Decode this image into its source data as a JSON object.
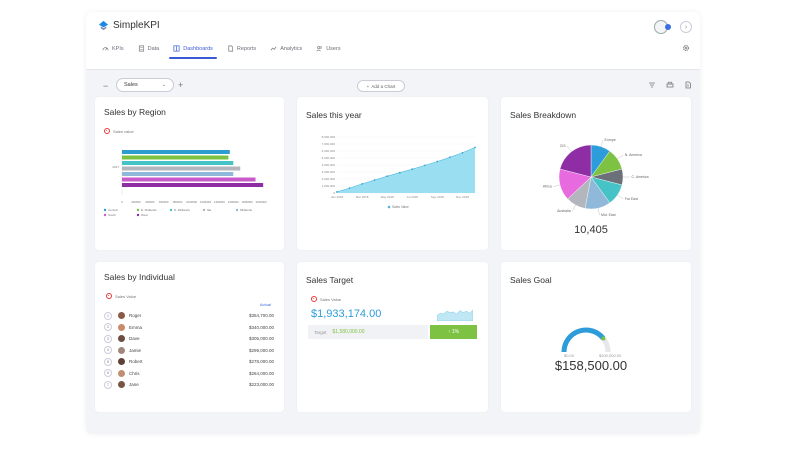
{
  "app": {
    "name": "SimpleKPI"
  },
  "nav": {
    "items": [
      {
        "label": "KPIs",
        "icon": "gauge-icon",
        "active": false
      },
      {
        "label": "Data",
        "icon": "data-icon",
        "active": false
      },
      {
        "label": "Dashboards",
        "icon": "dashboard-icon",
        "active": true
      },
      {
        "label": "Reports",
        "icon": "report-icon",
        "active": false
      },
      {
        "label": "Analytics",
        "icon": "analytics-icon",
        "active": false
      },
      {
        "label": "Users",
        "icon": "users-icon",
        "active": false
      }
    ]
  },
  "toolbar": {
    "dashboard_select": "Sales",
    "add_chart_label": "Add a Chart"
  },
  "cards": {
    "region": {
      "title": "Sales by Region",
      "kpi_label": "Sales value",
      "chart_data": {
        "type": "bar",
        "orientation": "horizontal",
        "title": "Sales by Region",
        "categories": [
          "2017"
        ],
        "series": [
          {
            "name": "Central",
            "value": 1550000,
            "color": "#2d9ccf"
          },
          {
            "name": "E. Midlands",
            "value": 1530000,
            "color": "#7dc243"
          },
          {
            "name": "N. Midlands",
            "value": 1600000,
            "color": "#46c3c7"
          },
          {
            "name": "NE",
            "value": 1700000,
            "color": "#b3b6bd"
          },
          {
            "name": "Midlands",
            "value": 1600000,
            "color": "#8fb8d9"
          },
          {
            "name": "South",
            "value": 1920000,
            "color": "#c85bc9"
          },
          {
            "name": "West",
            "value": 2030000,
            "color": "#8e2da4"
          }
        ],
        "xlim": [
          0,
          2200000
        ],
        "xticks": [
          "0",
          "200000",
          "400000",
          "600000",
          "800000",
          "1000000",
          "1200000",
          "1400000",
          "1600000",
          "1800000",
          "2000000"
        ]
      }
    },
    "year": {
      "title": "Sales this year",
      "legend": "Sales Value",
      "chart_data": {
        "type": "area",
        "title": "Sales this year",
        "categories": [
          "Jan 2018",
          "Feb 2018",
          "Mar 2018",
          "Apr 2018",
          "May 2018",
          "Jun 2018",
          "Jul 2018",
          "Aug 2018",
          "Sep 2018",
          "Oct 2018",
          "Nov 2018",
          "Dec 2018"
        ],
        "xticks": [
          "Jan 2018",
          "Mar 2018",
          "May 2018",
          "Jul 2018",
          "Sep 2018",
          "Nov 2018"
        ],
        "values": [
          150000,
          700000,
          1300000,
          1850000,
          2400000,
          2900000,
          3400000,
          3950000,
          4500000,
          5100000,
          5750000,
          6500000
        ],
        "ylim": [
          0,
          8000000
        ],
        "yticks": [
          "0",
          "1,000,000",
          "2,000,000",
          "3,000,000",
          "4,000,000",
          "5,000,000",
          "6,000,000",
          "7,000,000",
          "8,000,000"
        ],
        "color": "#8fdcf0"
      }
    },
    "breakdown": {
      "title": "Sales Breakdown",
      "total": "10,405",
      "chart_data": {
        "type": "pie",
        "title": "Sales Breakdown",
        "slices": [
          {
            "label": "Europe",
            "value": 10,
            "color": "#2d9cdb"
          },
          {
            "label": "N. America",
            "value": 11,
            "color": "#7dc243"
          },
          {
            "label": "C. America",
            "value": 8,
            "color": "#6b7079"
          },
          {
            "label": "Far East",
            "value": 11,
            "color": "#46c3c7"
          },
          {
            "label": "Mid. East",
            "value": 13,
            "color": "#8fb8d9"
          },
          {
            "label": "Australia",
            "value": 10,
            "color": "#b3b6bd"
          },
          {
            "label": "Africa",
            "value": 16,
            "color": "#e86adf"
          },
          {
            "label": "CIS",
            "value": 21,
            "color": "#8e2da4"
          }
        ]
      }
    },
    "individual": {
      "title": "Sales by Individual",
      "kpi_label": "Sales Value",
      "column_label": "Actual",
      "rows": [
        {
          "rank": "1",
          "name": "Roger",
          "value": "$354,700.00"
        },
        {
          "rank": "2",
          "name": "Emma",
          "value": "$340,000.00"
        },
        {
          "rank": "3",
          "name": "Dave",
          "value": "$305,000.00"
        },
        {
          "rank": "4",
          "name": "Jamie",
          "value": "$299,000.00"
        },
        {
          "rank": "5",
          "name": "Robert",
          "value": "$278,000.00"
        },
        {
          "rank": "6",
          "name": "Chris",
          "value": "$264,000.00"
        },
        {
          "rank": "7",
          "name": "Jane",
          "value": "$223,000.00"
        }
      ],
      "avatar_colors": [
        "#8a5a44",
        "#c98a6b",
        "#6d4c41",
        "#a1887f",
        "#5d4037",
        "#bf8f74",
        "#795548"
      ]
    },
    "target": {
      "title": "Sales Target",
      "kpi_label": "Sales Value",
      "value": "$1,933,174.00",
      "target_label": "Target",
      "target_value": "$1,580,000.00",
      "percent": "↑ 1%",
      "sparkline": [
        0.4,
        0.55,
        0.5,
        0.7,
        0.6,
        0.65,
        0.5,
        0.75,
        0.6,
        0.7,
        0.55,
        0.8
      ]
    },
    "goal": {
      "title": "Sales Goal",
      "value": "$158,500.00",
      "min_label": "$0.00",
      "max_label": "$200,000.00",
      "progress": 0.79
    }
  }
}
